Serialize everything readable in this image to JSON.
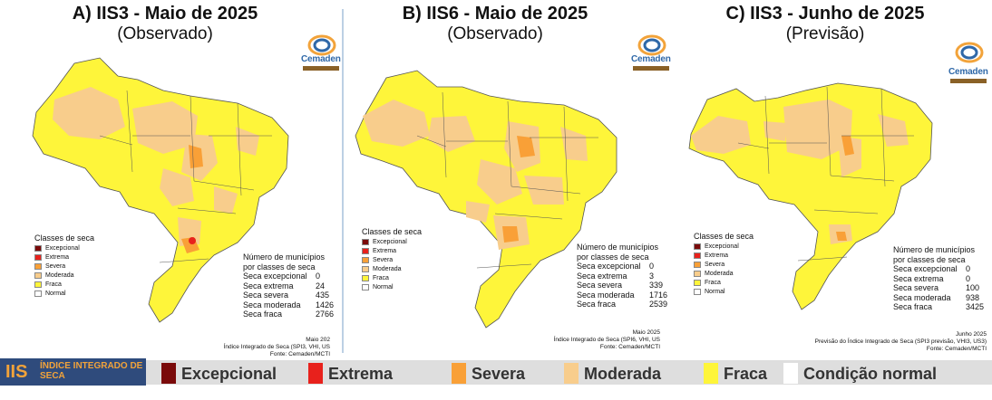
{
  "colors": {
    "excepcional": "#7a0a0a",
    "extrema": "#e8211c",
    "severa": "#f9a037",
    "moderada": "#f8cd8c",
    "fraca": "#fef53a",
    "normal": "#ffffff",
    "iis_box": "#2f4b7c",
    "iis_text": "#f2a33a",
    "bar": "#dedede"
  },
  "logo": {
    "text": "Cemaden",
    "icon": "cemaden-logo-icon"
  },
  "legend_title": "Classes de seca",
  "legend_items": [
    "Excepcional",
    "Extrema",
    "Severa",
    "Moderada",
    "Fraca",
    "Normal"
  ],
  "stats_header": [
    "Número de municípios",
    "por classes de seca"
  ],
  "panels": [
    {
      "title": "A) IIS3 - Maio de 2025",
      "subtitle": "(Observado)",
      "stats": [
        {
          "label": "Seca excepcional",
          "value": "0"
        },
        {
          "label": "Seca extrema",
          "value": "24"
        },
        {
          "label": "Seca severa",
          "value": "435"
        },
        {
          "label": "Seca moderada",
          "value": "1426"
        },
        {
          "label": "Seca fraca",
          "value": "2766"
        }
      ],
      "footer": [
        "Maio 202",
        "Índice Integrado de Seca (SPI3, VHI, US",
        "Fonte: Cemaden/MCTI"
      ]
    },
    {
      "title": "B) IIS6 - Maio de 2025",
      "subtitle": "(Observado)",
      "stats": [
        {
          "label": "Seca excepcional",
          "value": "0"
        },
        {
          "label": "Seca extrema",
          "value": "3"
        },
        {
          "label": "Seca severa",
          "value": "339"
        },
        {
          "label": "Seca moderada",
          "value": "1716"
        },
        {
          "label": "Seca fraca",
          "value": "2539"
        }
      ],
      "footer": [
        "Maio 2025",
        "Índice Integrado de Seca (SPI6, VHI, US",
        "Fonte: Cemaden/MCTI"
      ]
    },
    {
      "title": "C) IIS3 - Junho de 2025",
      "subtitle": "(Previsão)",
      "stats": [
        {
          "label": "Seca excepcional",
          "value": "0"
        },
        {
          "label": "Seca extrema",
          "value": "0"
        },
        {
          "label": "Seca severa",
          "value": "100"
        },
        {
          "label": "Seca moderada",
          "value": "938"
        },
        {
          "label": "Seca fraca",
          "value": "3425"
        }
      ],
      "footer": [
        "Junho 2025",
        "Previsão do Índice Integrado de Seca (SPI3 previsão, VHI3, US3)",
        "Fonte: Cemaden/MCTI"
      ]
    }
  ],
  "bottom_bar": {
    "abbr": "IIS",
    "name": "ÍNDICE INTEGRADO DE SECA",
    "classes": [
      "Excepcional",
      "Extrema",
      "Severa",
      "Moderada",
      "Fraca",
      "Condição normal"
    ]
  }
}
